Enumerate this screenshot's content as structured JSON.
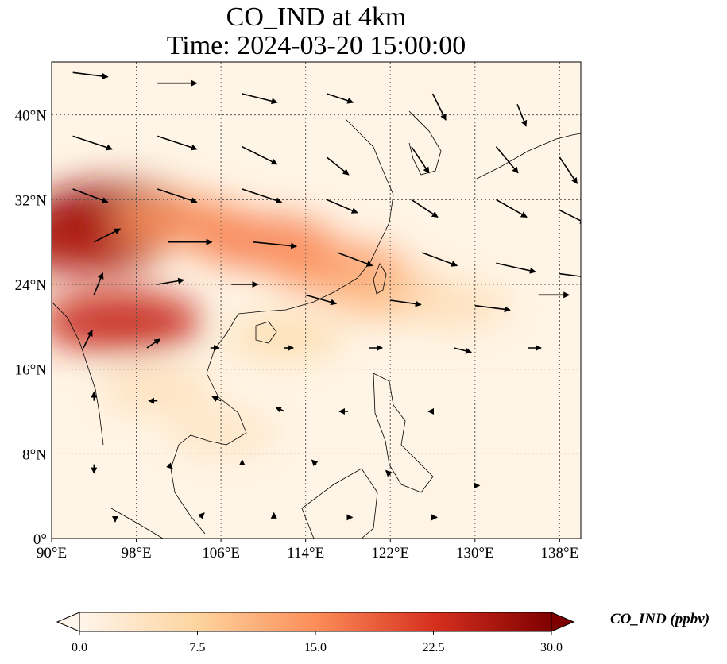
{
  "title": {
    "line1": "CO_IND at 4km",
    "line2": "Time: 2024-03-20 15:00:00"
  },
  "colors": {
    "low": "#fff5e6",
    "mid": "#fdae6b",
    "high": "#d94801",
    "max": "#7f0000",
    "coast": "#000000",
    "grid": "#555555",
    "arrow": "#000000"
  },
  "map": {
    "lon_range": [
      90,
      140
    ],
    "lat_range": [
      0,
      45
    ],
    "lon_ticks": [
      "90°E",
      "98°E",
      "106°E",
      "114°E",
      "122°E",
      "130°E",
      "138°E"
    ],
    "lon_tick_values": [
      90,
      98,
      106,
      114,
      122,
      130,
      138
    ],
    "lat_ticks": [
      "0°",
      "8°N",
      "16°N",
      "24°N",
      "32°N",
      "40°N"
    ],
    "lat_tick_values": [
      0,
      8,
      16,
      24,
      32,
      40
    ],
    "gridlines": "dotted"
  },
  "colorbar": {
    "label": "CO_IND (ppbv)",
    "ticks": [
      "0.0",
      "7.5",
      "15.0",
      "22.5",
      "30.0"
    ],
    "tick_values": [
      0,
      7.5,
      15,
      22.5,
      30
    ],
    "range": [
      0,
      30
    ],
    "extend": "both"
  },
  "plumes": [
    {
      "lon": 96,
      "lat": 30.5,
      "level": 28
    },
    {
      "lon": 93,
      "lat": 28,
      "level": 26
    },
    {
      "lon": 102,
      "lat": 30,
      "level": 14
    },
    {
      "lon": 110,
      "lat": 28,
      "level": 16
    },
    {
      "lon": 117,
      "lat": 25.5,
      "level": 14
    },
    {
      "lon": 122,
      "lat": 23,
      "level": 10
    },
    {
      "lon": 128,
      "lat": 22,
      "level": 5
    },
    {
      "lon": 96.5,
      "lat": 20.5,
      "level": 24
    },
    {
      "lon": 112,
      "lat": 19,
      "level": 6
    },
    {
      "lon": 106,
      "lat": 10,
      "level": 4
    },
    {
      "lon": 100,
      "lat": 14,
      "level": 5
    }
  ],
  "wind": [
    {
      "lon": 92,
      "lat": 44,
      "u": 8,
      "v": -1
    },
    {
      "lon": 100,
      "lat": 43,
      "u": 9,
      "v": 0
    },
    {
      "lon": 108,
      "lat": 42,
      "u": 8,
      "v": -2
    },
    {
      "lon": 116,
      "lat": 42,
      "u": 6,
      "v": -2
    },
    {
      "lon": 126,
      "lat": 42,
      "u": 3,
      "v": -6
    },
    {
      "lon": 134,
      "lat": 41,
      "u": 2,
      "v": -5
    },
    {
      "lon": 92,
      "lat": 38,
      "u": 9,
      "v": -3
    },
    {
      "lon": 100,
      "lat": 38,
      "u": 9,
      "v": -3
    },
    {
      "lon": 108,
      "lat": 37,
      "u": 8,
      "v": -4
    },
    {
      "lon": 116,
      "lat": 36,
      "u": 5,
      "v": -4
    },
    {
      "lon": 124,
      "lat": 37,
      "u": 4,
      "v": -6
    },
    {
      "lon": 132,
      "lat": 37,
      "u": 5,
      "v": -6
    },
    {
      "lon": 138,
      "lat": 36,
      "u": 4,
      "v": -6
    },
    {
      "lon": 92,
      "lat": 33,
      "u": 8,
      "v": -3
    },
    {
      "lon": 100,
      "lat": 33,
      "u": 9,
      "v": -3
    },
    {
      "lon": 108,
      "lat": 33,
      "u": 9,
      "v": -3
    },
    {
      "lon": 116,
      "lat": 32,
      "u": 7,
      "v": -3
    },
    {
      "lon": 124,
      "lat": 32,
      "u": 6,
      "v": -4
    },
    {
      "lon": 132,
      "lat": 32,
      "u": 7,
      "v": -4
    },
    {
      "lon": 138,
      "lat": 31,
      "u": 6,
      "v": -3
    },
    {
      "lon": 94,
      "lat": 28,
      "u": 6,
      "v": 3
    },
    {
      "lon": 101,
      "lat": 28,
      "u": 10,
      "v": 0
    },
    {
      "lon": 109,
      "lat": 28,
      "u": 10,
      "v": -1
    },
    {
      "lon": 117,
      "lat": 27,
      "u": 8,
      "v": -3
    },
    {
      "lon": 125,
      "lat": 27,
      "u": 8,
      "v": -3
    },
    {
      "lon": 132,
      "lat": 26,
      "u": 9,
      "v": -2
    },
    {
      "lon": 138,
      "lat": 25,
      "u": 8,
      "v": -1
    },
    {
      "lon": 94,
      "lat": 23,
      "u": 2,
      "v": 5
    },
    {
      "lon": 100,
      "lat": 24,
      "u": 6,
      "v": 1
    },
    {
      "lon": 107,
      "lat": 24,
      "u": 6,
      "v": 0
    },
    {
      "lon": 114,
      "lat": 23,
      "u": 7,
      "v": -2
    },
    {
      "lon": 122,
      "lat": 22.5,
      "u": 7,
      "v": -1
    },
    {
      "lon": 130,
      "lat": 22,
      "u": 8,
      "v": -1
    },
    {
      "lon": 136,
      "lat": 23,
      "u": 7,
      "v": 0
    },
    {
      "lon": 93,
      "lat": 18,
      "u": 2,
      "v": 4
    },
    {
      "lon": 99,
      "lat": 18,
      "u": 3,
      "v": 2
    },
    {
      "lon": 105,
      "lat": 18,
      "u": 2,
      "v": 0
    },
    {
      "lon": 112,
      "lat": 18,
      "u": 2,
      "v": 0
    },
    {
      "lon": 120,
      "lat": 18,
      "u": 3,
      "v": 0
    },
    {
      "lon": 128,
      "lat": 18,
      "u": 4,
      "v": -1
    },
    {
      "lon": 135,
      "lat": 18,
      "u": 3,
      "v": 0
    },
    {
      "lon": 94,
      "lat": 13,
      "u": 0,
      "v": 2
    },
    {
      "lon": 100,
      "lat": 13,
      "u": -2,
      "v": 0
    },
    {
      "lon": 106,
      "lat": 13,
      "u": -2,
      "v": 1
    },
    {
      "lon": 112,
      "lat": 12,
      "u": -2,
      "v": 1
    },
    {
      "lon": 118,
      "lat": 12,
      "u": -2,
      "v": 0
    },
    {
      "lon": 126,
      "lat": 12,
      "u": -1,
      "v": 0
    },
    {
      "lon": 94,
      "lat": 7,
      "u": 0,
      "v": -2
    },
    {
      "lon": 101,
      "lat": 7,
      "u": 1,
      "v": -1
    },
    {
      "lon": 108,
      "lat": 7,
      "u": 0,
      "v": 1
    },
    {
      "lon": 115,
      "lat": 7,
      "u": -1,
      "v": 1
    },
    {
      "lon": 122,
      "lat": 6,
      "u": -1,
      "v": 1
    },
    {
      "lon": 130,
      "lat": 5,
      "u": 1,
      "v": 0
    },
    {
      "lon": 96,
      "lat": 2,
      "u": 0,
      "v": -1
    },
    {
      "lon": 104,
      "lat": 2,
      "u": 1,
      "v": 1
    },
    {
      "lon": 111,
      "lat": 2,
      "u": 0,
      "v": 1
    },
    {
      "lon": 118,
      "lat": 2,
      "u": 1,
      "v": 0
    },
    {
      "lon": 126,
      "lat": 2,
      "u": 1,
      "v": 0
    }
  ]
}
